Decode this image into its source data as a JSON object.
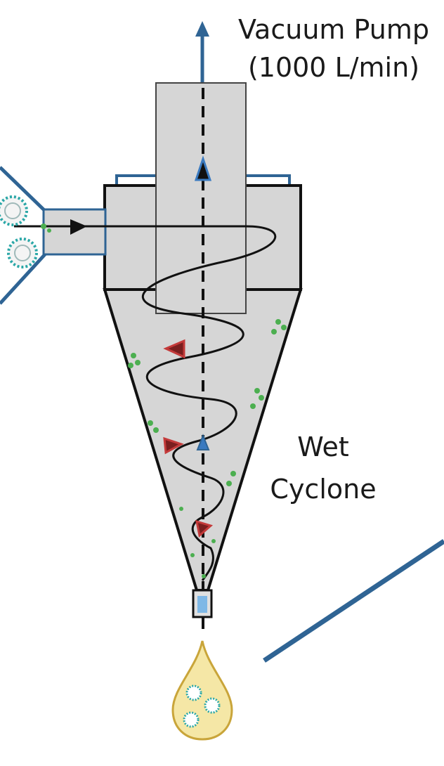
{
  "labels": {
    "vacuum_pump": "Vacuum Pump",
    "flow_rate": "(1000 L/min)",
    "wet": "Wet",
    "cyclone": "Cyclone"
  },
  "colors": {
    "body_fill": "#d6d6d6",
    "outline": "#111111",
    "blue_line": "#2f6494",
    "flow_arrow_blue": "#3a7ac0",
    "flow_arrow_red": "#c43a3a",
    "particle_green": "#4caf50",
    "droplet_fill": "#f5e7a6",
    "droplet_edge": "#c9a53a",
    "virus_teal": "#2aa7a7"
  },
  "icons": [
    "up-arrow-icon",
    "virus-icon",
    "droplet-icon"
  ]
}
